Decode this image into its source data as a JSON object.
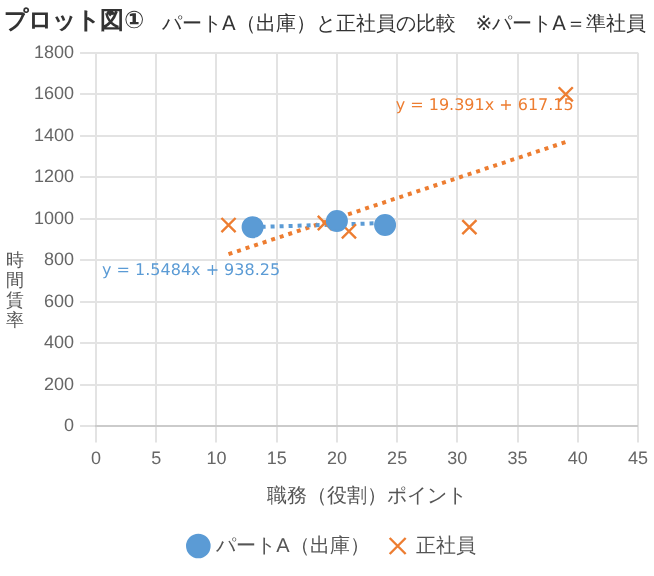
{
  "chart_data": {
    "type": "scatter",
    "title": "プロット図①",
    "subtitle": "パートA（出庫）と正社員の比較　※パートA＝準社員",
    "xlabel": "職務（役割）ポイント",
    "ylabel": "時間賃率",
    "xlim": [
      0,
      45
    ],
    "xticks": [
      0,
      5,
      10,
      15,
      20,
      25,
      30,
      35,
      40,
      45
    ],
    "ylim": [
      0,
      1800
    ],
    "yticks": [
      0,
      200,
      400,
      600,
      800,
      1000,
      1200,
      1400,
      1600,
      1800
    ],
    "grid": true,
    "legend": "bottom",
    "series": [
      {
        "name": "パートA（出庫）",
        "color": "#5b9bd5",
        "marker": "circle",
        "x": [
          13,
          20,
          24
        ],
        "values": [
          960,
          990,
          970
        ]
      },
      {
        "name": "正社員",
        "color": "#ed7d31",
        "marker": "cross",
        "x": [
          11,
          19,
          21,
          31,
          39
        ],
        "values": [
          970,
          980,
          940,
          960,
          1600
        ]
      },
      {
        "type": "line",
        "color": "#5b9bd5",
        "line_style": "dotted",
        "marker": "none",
        "x": [
          13,
          24
        ],
        "values": [
          960,
          980
        ]
      },
      {
        "type": "line",
        "color": "#ed7d31",
        "line_style": "dotted",
        "marker": "none",
        "x": [
          11,
          39
        ],
        "values": [
          830,
          1370
        ]
      }
    ],
    "annotations": [
      "y = 1.5484x + 938.25",
      "y = 19.391x + 617.15"
    ]
  }
}
